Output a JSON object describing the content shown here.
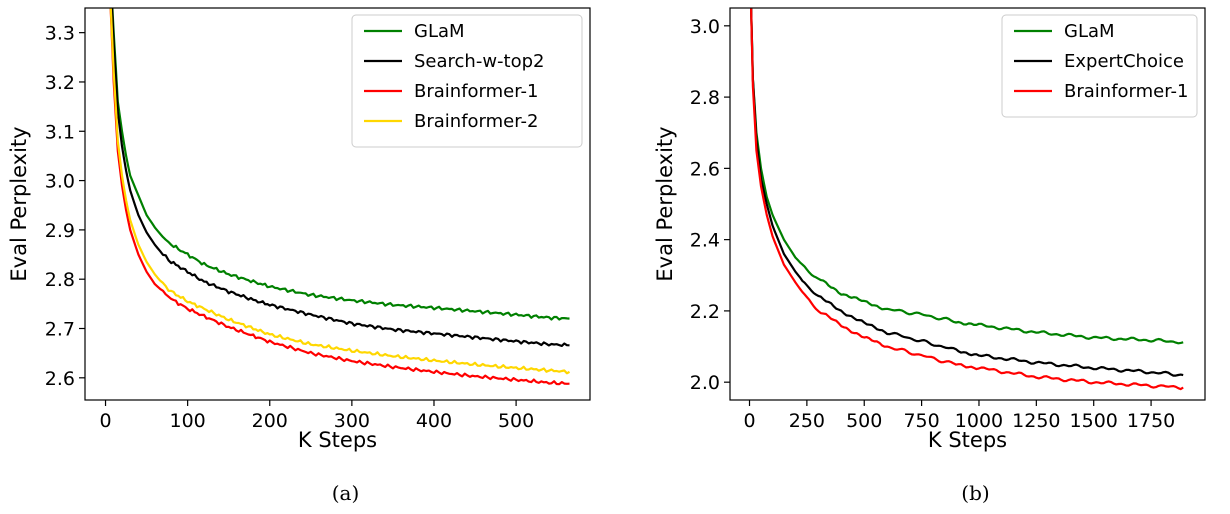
{
  "chart_data": [
    {
      "type": "line",
      "panel_caption": "(a)",
      "title": "",
      "xlabel": "K Steps",
      "ylabel": "Eval Perplexity",
      "xlim": [
        -25,
        590
      ],
      "ylim": [
        2.555,
        3.35
      ],
      "xticks": [
        0,
        100,
        200,
        300,
        400,
        500
      ],
      "yticks": [
        2.6,
        2.7,
        2.8,
        2.9,
        3.0,
        3.1,
        3.2,
        3.3
      ],
      "grid": false,
      "legend_position": "top-right",
      "series": [
        {
          "name": "GLaM",
          "color": "#008000",
          "x": [
            5,
            10,
            15,
            20,
            25,
            30,
            40,
            50,
            60,
            70,
            80,
            100,
            120,
            150,
            180,
            200,
            250,
            300,
            350,
            400,
            450,
            500,
            540,
            565
          ],
          "y": [
            3.45,
            3.3,
            3.16,
            3.1,
            3.05,
            3.01,
            2.97,
            2.93,
            2.905,
            2.885,
            2.87,
            2.85,
            2.83,
            2.81,
            2.795,
            2.785,
            2.768,
            2.757,
            2.748,
            2.742,
            2.735,
            2.728,
            2.722,
            2.72
          ]
        },
        {
          "name": "Search-w-top2",
          "color": "#000000",
          "x": [
            5,
            10,
            15,
            20,
            25,
            30,
            40,
            50,
            60,
            70,
            80,
            100,
            120,
            150,
            180,
            200,
            250,
            300,
            350,
            400,
            450,
            500,
            540,
            565
          ],
          "y": [
            3.45,
            3.28,
            3.14,
            3.07,
            3.02,
            2.98,
            2.93,
            2.895,
            2.87,
            2.85,
            2.835,
            2.815,
            2.795,
            2.775,
            2.758,
            2.748,
            2.728,
            2.71,
            2.698,
            2.69,
            2.682,
            2.674,
            2.668,
            2.666
          ]
        },
        {
          "name": "Brainformer-1",
          "color": "#ff0000",
          "x": [
            5,
            10,
            15,
            20,
            25,
            30,
            40,
            50,
            60,
            70,
            80,
            100,
            120,
            150,
            180,
            200,
            250,
            300,
            350,
            400,
            450,
            500,
            540,
            565
          ],
          "y": [
            3.4,
            3.2,
            3.06,
            2.99,
            2.94,
            2.9,
            2.85,
            2.815,
            2.79,
            2.775,
            2.76,
            2.74,
            2.725,
            2.703,
            2.685,
            2.673,
            2.65,
            2.634,
            2.622,
            2.612,
            2.603,
            2.596,
            2.59,
            2.588
          ]
        },
        {
          "name": "Brainformer-2",
          "color": "#ffd700",
          "x": [
            5,
            10,
            15,
            20,
            25,
            30,
            40,
            50,
            60,
            70,
            80,
            100,
            120,
            150,
            180,
            200,
            250,
            300,
            350,
            400,
            450,
            500,
            540,
            565
          ],
          "y": [
            3.4,
            3.22,
            3.08,
            3.01,
            2.96,
            2.92,
            2.87,
            2.835,
            2.81,
            2.79,
            2.775,
            2.755,
            2.74,
            2.718,
            2.7,
            2.688,
            2.668,
            2.655,
            2.644,
            2.635,
            2.627,
            2.62,
            2.615,
            2.612
          ]
        }
      ]
    },
    {
      "type": "line",
      "panel_caption": "(b)",
      "title": "",
      "xlabel": "K Steps",
      "ylabel": "Eval Perplexity",
      "xlim": [
        -85,
        1985
      ],
      "ylim": [
        1.95,
        3.05
      ],
      "xticks": [
        0,
        250,
        500,
        750,
        1000,
        1250,
        1500,
        1750
      ],
      "yticks": [
        2.0,
        2.2,
        2.4,
        2.6,
        2.8,
        3.0
      ],
      "grid": false,
      "legend_position": "top-right",
      "series": [
        {
          "name": "GLaM",
          "color": "#008000",
          "x": [
            5,
            15,
            30,
            50,
            75,
            100,
            150,
            200,
            250,
            300,
            400,
            500,
            600,
            750,
            900,
            1000,
            1250,
            1500,
            1750,
            1890
          ],
          "y": [
            3.1,
            2.85,
            2.7,
            2.6,
            2.52,
            2.47,
            2.4,
            2.35,
            2.315,
            2.29,
            2.25,
            2.225,
            2.205,
            2.19,
            2.17,
            2.16,
            2.14,
            2.125,
            2.118,
            2.112
          ]
        },
        {
          "name": "ExpertChoice",
          "color": "#000000",
          "x": [
            5,
            15,
            30,
            50,
            75,
            100,
            150,
            200,
            250,
            300,
            400,
            500,
            600,
            750,
            900,
            1000,
            1250,
            1500,
            1750,
            1890
          ],
          "y": [
            3.1,
            2.85,
            2.68,
            2.57,
            2.5,
            2.44,
            2.36,
            2.31,
            2.27,
            2.24,
            2.2,
            2.165,
            2.14,
            2.115,
            2.09,
            2.075,
            2.055,
            2.04,
            2.028,
            2.02
          ]
        },
        {
          "name": "Brainformer-1",
          "color": "#ff0000",
          "x": [
            5,
            15,
            30,
            50,
            75,
            100,
            150,
            200,
            250,
            300,
            400,
            500,
            600,
            750,
            900,
            1000,
            1250,
            1500,
            1750,
            1890
          ],
          "y": [
            3.1,
            2.83,
            2.65,
            2.55,
            2.47,
            2.41,
            2.33,
            2.28,
            2.235,
            2.2,
            2.16,
            2.125,
            2.1,
            2.075,
            2.05,
            2.04,
            2.015,
            2.0,
            1.99,
            1.985
          ]
        }
      ]
    }
  ]
}
